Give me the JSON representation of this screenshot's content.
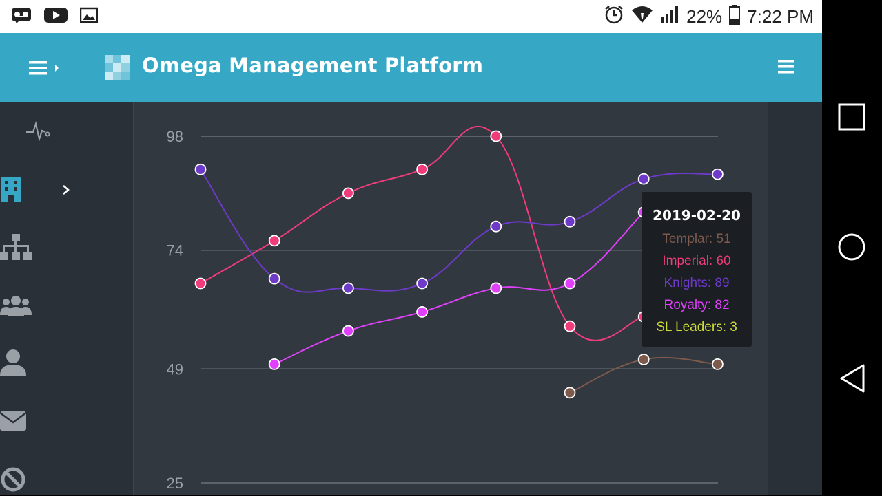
{
  "status_bar": {
    "battery": "22%",
    "time": "7:22 PM",
    "left_icons": [
      "voicemail-icon",
      "youtube-icon",
      "image-icon"
    ],
    "right_icons": [
      "alarm-icon",
      "wifi-icon",
      "signal-icon",
      "battery-icon"
    ]
  },
  "header": {
    "title": "Omega Management Platform",
    "color": "#36a8c6"
  },
  "sidebar": {
    "items": [
      {
        "icon": "activity-icon"
      },
      {
        "icon": "building-icon",
        "active": true
      },
      {
        "icon": "sitemap-icon"
      },
      {
        "icon": "users-icon"
      },
      {
        "icon": "user-icon"
      },
      {
        "icon": "envelope-icon"
      },
      {
        "icon": "ban-icon"
      }
    ]
  },
  "chart_data": {
    "type": "line",
    "y_ticks": [
      "98",
      "74",
      "49",
      "25"
    ],
    "x": [
      "",
      "",
      "",
      "",
      "",
      "",
      "",
      "2019-02-20"
    ],
    "series": [
      {
        "name": "Templar",
        "color": "#7d5a4c",
        "values": [
          null,
          null,
          null,
          null,
          null,
          44,
          51,
          50
        ]
      },
      {
        "name": "Imperial",
        "color": "#f03c7a",
        "values": [
          67,
          76,
          86,
          91,
          98,
          58,
          60,
          null
        ]
      },
      {
        "name": "Knights",
        "color": "#6d3ac9",
        "values": [
          91,
          68,
          66,
          67,
          79,
          80,
          89,
          90
        ]
      },
      {
        "name": "Royalty",
        "color": "#e040fb",
        "values": [
          null,
          50,
          57,
          61,
          66,
          67,
          82,
          null
        ]
      },
      {
        "name": "SL Leaders",
        "color": "#cddc39",
        "values": [
          null,
          null,
          null,
          null,
          null,
          null,
          3,
          null
        ]
      }
    ],
    "grid": true
  },
  "tooltip": {
    "date": "2019-02-20",
    "rows": [
      {
        "label": "Templar: 51",
        "color": "#7d5a4c"
      },
      {
        "label": "Imperial: 60",
        "color": "#f03c7a"
      },
      {
        "label": "Knights: 89",
        "color": "#6d3ac9"
      },
      {
        "label": "Royalty: 82",
        "color": "#e040fb"
      },
      {
        "label": "SL Leaders: 3",
        "color": "#cddc39"
      }
    ]
  },
  "nav_bar": {
    "buttons": [
      "recents-icon",
      "home-icon",
      "back-icon"
    ]
  }
}
